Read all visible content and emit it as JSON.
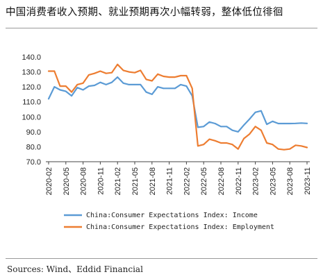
{
  "title": "中国消费者收入预期、就业预期再次小幅转弱，整体低位徘徊",
  "source": "Sources: Wind、Eddid Financial",
  "chart_data": {
    "type": "line",
    "title": "中国消费者收入预期、就业预期再次小幅转弱，整体低位徘徊",
    "xlabel": "",
    "ylabel": "",
    "ylim": [
      70,
      140
    ],
    "yticks": [
      "70.0",
      "80.0",
      "90.0",
      "100.0",
      "110.0",
      "120.0",
      "130.0",
      "140.0"
    ],
    "xticks": [
      "2020-02",
      "2020-05",
      "2020-08",
      "2020-11",
      "2021-02",
      "2021-05",
      "2021-08",
      "2021-11",
      "2022-02",
      "2022-05",
      "2022-08",
      "2022-11",
      "2023-02",
      "2023-05",
      "2023-08",
      "2023-11"
    ],
    "x": [
      "2020-02",
      "2020-03",
      "2020-04",
      "2020-05",
      "2020-06",
      "2020-07",
      "2020-08",
      "2020-09",
      "2020-10",
      "2020-11",
      "2020-12",
      "2021-01",
      "2021-02",
      "2021-03",
      "2021-04",
      "2021-05",
      "2021-06",
      "2021-07",
      "2021-08",
      "2021-09",
      "2021-10",
      "2021-11",
      "2021-12",
      "2022-01",
      "2022-02",
      "2022-03",
      "2022-04",
      "2022-05",
      "2022-06",
      "2022-07",
      "2022-08",
      "2022-09",
      "2022-10",
      "2022-11",
      "2022-12",
      "2023-01",
      "2023-02",
      "2023-03",
      "2023-04",
      "2023-05",
      "2023-06",
      "2023-07",
      "2023-08",
      "2023-09",
      "2023-10",
      "2023-11"
    ],
    "grid": false,
    "legend_position": "bottom",
    "series": [
      {
        "name": "China:Consumer Expectations Index: Income",
        "color": "#5b9bd5",
        "values": [
          112.0,
          120.0,
          118.0,
          117.0,
          114.0,
          119.5,
          118.0,
          120.5,
          121.0,
          123.0,
          121.5,
          123.0,
          126.5,
          122.5,
          121.5,
          121.5,
          121.5,
          116.5,
          115.0,
          120.0,
          119.0,
          119.0,
          119.0,
          121.5,
          120.5,
          114.0,
          93.0,
          93.5,
          96.5,
          95.5,
          93.5,
          93.5,
          91.0,
          90.0,
          94.5,
          98.5,
          103.0,
          104.0,
          95.0,
          97.0,
          95.5,
          95.5,
          95.5,
          95.6,
          95.8,
          95.6
        ]
      },
      {
        "name": "China:Consumer Expectations Index: Employment",
        "color": "#ed7d31",
        "values": [
          130.5,
          130.5,
          120.5,
          120.5,
          116.5,
          121.5,
          122.5,
          128.0,
          129.0,
          130.5,
          129.0,
          129.5,
          135.0,
          131.0,
          130.0,
          129.5,
          131.0,
          125.0,
          124.0,
          128.5,
          127.0,
          126.5,
          126.5,
          127.5,
          127.5,
          119.0,
          80.5,
          81.5,
          85.0,
          84.0,
          82.5,
          82.5,
          81.5,
          78.5,
          85.5,
          88.5,
          93.5,
          91.0,
          82.5,
          81.5,
          78.5,
          78.0,
          78.5,
          81.0,
          80.5,
          79.5
        ]
      }
    ]
  }
}
